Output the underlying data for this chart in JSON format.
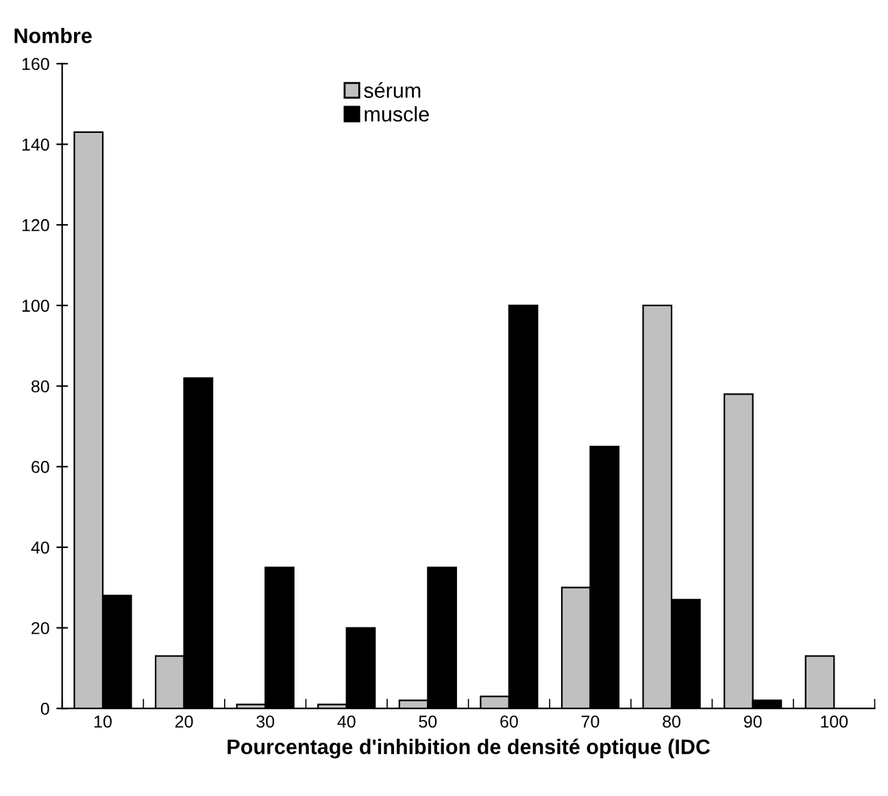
{
  "chart_data": {
    "type": "bar",
    "ylabel": "Nombre",
    "xlabel": "Pourcentage d'inhibition de densité optique (IDC",
    "categories": [
      "10",
      "20",
      "30",
      "40",
      "50",
      "60",
      "70",
      "80",
      "90",
      "100"
    ],
    "series": [
      {
        "name": "sérum",
        "color": "#c0c0c0",
        "values": [
          143,
          13,
          1,
          1,
          2,
          3,
          30,
          100,
          78,
          13
        ]
      },
      {
        "name": "muscle",
        "color": "#000000",
        "values": [
          28,
          82,
          35,
          20,
          35,
          100,
          65,
          27,
          2,
          0
        ]
      }
    ],
    "ylim": [
      0,
      160
    ],
    "yticks": [
      0,
      20,
      40,
      60,
      80,
      100,
      120,
      140,
      160
    ],
    "grid": false,
    "legend": "top"
  }
}
